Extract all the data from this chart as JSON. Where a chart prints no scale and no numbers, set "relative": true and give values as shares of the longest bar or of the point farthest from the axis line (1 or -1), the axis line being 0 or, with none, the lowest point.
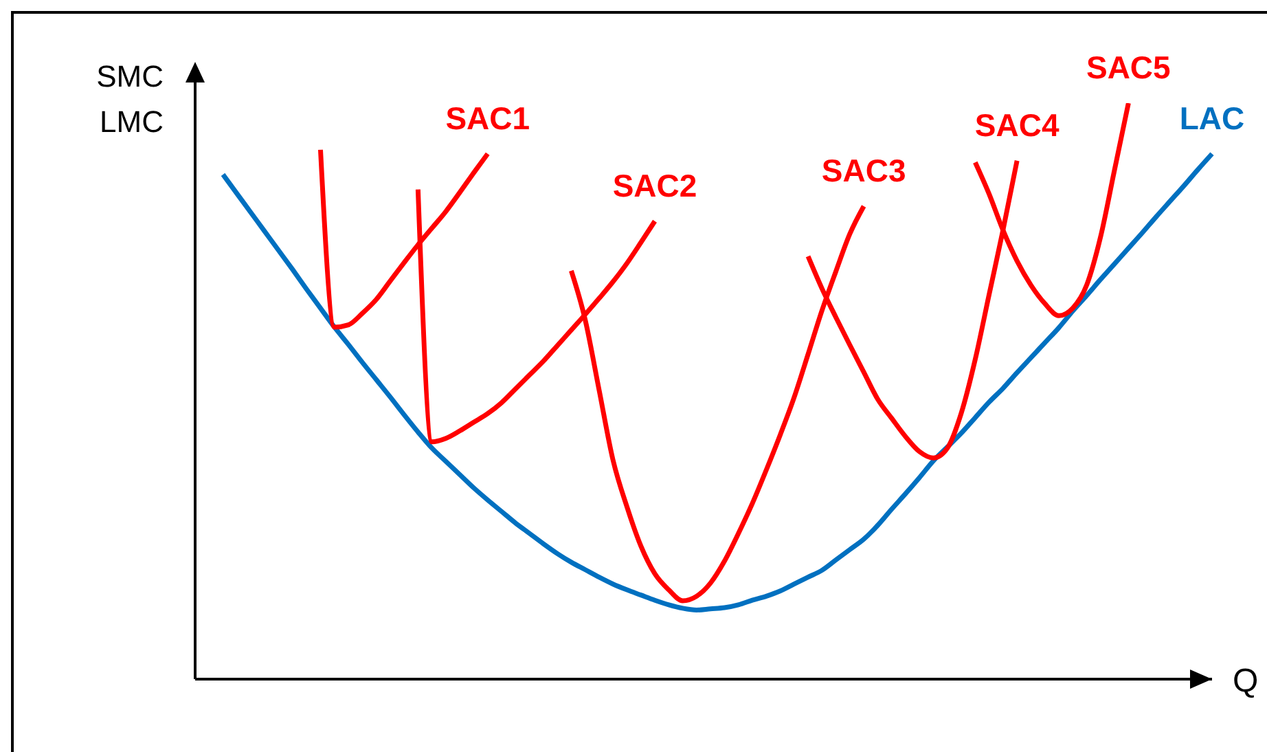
{
  "chart_data": {
    "type": "line",
    "xlabel": "Q",
    "ylabel": "SMC\nLMC",
    "relative": true,
    "marker": "none",
    "categories": [
      null,
      null,
      null,
      null,
      null,
      null,
      null,
      null,
      null,
      null,
      null,
      null,
      null,
      null,
      null,
      null,
      null,
      null,
      null,
      null,
      null,
      null,
      null,
      null,
      null,
      null,
      null,
      null,
      null,
      null,
      null,
      null,
      null,
      null,
      null,
      null,
      null,
      null,
      null,
      null,
      null,
      null,
      null,
      null,
      null,
      null,
      null,
      null,
      null,
      null,
      null,
      null,
      null,
      null,
      null,
      null,
      null,
      null,
      null,
      null,
      null,
      null,
      null,
      null,
      null,
      null,
      null,
      null,
      null,
      null,
      null,
      null,
      null,
      null
    ],
    "series": [
      {
        "name": "LAC",
        "color": "#0070c0",
        "values": [
          null,
          null,
          0.876,
          0.843,
          0.81,
          0.777,
          0.744,
          0.711,
          0.677,
          0.644,
          0.611,
          0.581,
          0.55,
          0.52,
          0.49,
          0.459,
          0.429,
          0.401,
          0.378,
          0.355,
          0.332,
          0.311,
          0.291,
          0.271,
          0.253,
          0.235,
          0.218,
          0.203,
          0.19,
          0.177,
          0.165,
          0.155,
          0.146,
          0.137,
          0.129,
          0.123,
          0.12,
          0.122,
          0.124,
          0.129,
          0.137,
          0.144,
          0.153,
          0.165,
          0.177,
          0.189,
          0.207,
          0.225,
          0.243,
          0.267,
          0.295,
          0.322,
          0.35,
          0.379,
          0.403,
          0.427,
          0.454,
          0.481,
          0.505,
          0.532,
          0.558,
          0.584,
          0.61,
          0.639,
          0.666,
          0.694,
          0.721,
          0.748,
          0.775,
          0.803,
          0.83,
          0.857,
          0.885,
          0.912
        ]
      },
      {
        "name": "SAC1",
        "color": "#ff0000",
        "values": [
          null,
          null,
          null,
          null,
          null,
          null,
          null,
          null,
          null,
          0.919,
          0.611,
          0.615,
          0.635,
          0.659,
          0.691,
          0.723,
          0.754,
          0.783,
          0.812,
          0.845,
          0.879,
          0.912,
          null,
          null,
          null,
          null,
          null,
          null,
          null,
          null,
          null,
          null,
          null,
          null,
          null,
          null,
          null,
          null,
          null,
          null,
          null,
          null,
          null,
          null,
          null,
          null,
          null,
          null,
          null,
          null,
          null,
          null,
          null,
          null,
          null,
          null,
          null,
          null,
          null,
          null,
          null,
          null,
          null,
          null,
          null,
          null,
          null,
          null,
          null,
          null,
          null,
          null,
          null,
          null
        ]
      },
      {
        "name": "SAC2",
        "color": "#ff0000",
        "values": [
          null,
          null,
          null,
          null,
          null,
          null,
          null,
          null,
          null,
          null,
          null,
          null,
          null,
          null,
          null,
          null,
          0.85,
          0.412,
          0.418,
          0.431,
          0.446,
          0.461,
          0.48,
          0.504,
          0.528,
          0.552,
          0.579,
          0.606,
          0.633,
          0.661,
          0.69,
          0.722,
          0.758,
          0.795,
          null,
          null,
          null,
          null,
          null,
          null,
          null,
          null,
          null,
          null,
          null,
          null,
          null,
          null,
          null,
          null,
          null,
          null,
          null,
          null,
          null,
          null,
          null,
          null,
          null,
          null,
          null,
          null,
          null,
          null,
          null,
          null,
          null,
          null,
          null,
          null,
          null,
          null,
          null,
          null
        ]
      },
      {
        "name": "SAC3",
        "color": "#ff0000",
        "values": [
          null,
          null,
          null,
          null,
          null,
          null,
          null,
          null,
          null,
          null,
          null,
          null,
          null,
          null,
          null,
          null,
          null,
          null,
          null,
          null,
          null,
          null,
          null,
          null,
          null,
          null,
          null,
          0.709,
          0.624,
          0.502,
          0.38,
          0.299,
          0.231,
          0.183,
          0.155,
          0.136,
          0.144,
          0.167,
          0.205,
          0.253,
          0.305,
          0.363,
          0.424,
          0.489,
          0.564,
          0.64,
          0.708,
          0.773,
          0.821,
          null,
          null,
          null,
          null,
          null,
          null,
          null,
          null,
          null,
          null,
          null,
          null,
          null,
          null,
          null,
          null,
          null,
          null,
          null,
          null,
          null,
          null,
          null,
          null,
          null
        ]
      },
      {
        "name": "SAC4",
        "color": "#ff0000",
        "values": [
          null,
          null,
          null,
          null,
          null,
          null,
          null,
          null,
          null,
          null,
          null,
          null,
          null,
          null,
          null,
          null,
          null,
          null,
          null,
          null,
          null,
          null,
          null,
          null,
          null,
          null,
          null,
          null,
          null,
          null,
          null,
          null,
          null,
          null,
          null,
          null,
          null,
          null,
          null,
          null,
          null,
          null,
          null,
          null,
          0.734,
          0.678,
          0.628,
          0.58,
          0.533,
          0.486,
          0.453,
          0.421,
          0.395,
          0.384,
          0.401,
          0.462,
          0.555,
          0.668,
          0.78,
          0.9,
          null,
          null,
          null,
          null,
          null,
          null,
          null,
          null,
          null,
          null,
          null,
          null,
          null,
          null
        ]
      },
      {
        "name": "SAC5",
        "color": "#ff0000",
        "values": [
          null,
          null,
          null,
          null,
          null,
          null,
          null,
          null,
          null,
          null,
          null,
          null,
          null,
          null,
          null,
          null,
          null,
          null,
          null,
          null,
          null,
          null,
          null,
          null,
          null,
          null,
          null,
          null,
          null,
          null,
          null,
          null,
          null,
          null,
          null,
          null,
          null,
          null,
          null,
          null,
          null,
          null,
          null,
          null,
          null,
          null,
          null,
          null,
          null,
          null,
          null,
          null,
          null,
          null,
          null,
          null,
          0.897,
          0.842,
          0.779,
          0.726,
          0.684,
          0.652,
          0.631,
          0.644,
          0.684,
          0.768,
          0.884,
          1,
          null,
          null,
          null,
          null,
          null,
          null
        ]
      }
    ]
  }
}
